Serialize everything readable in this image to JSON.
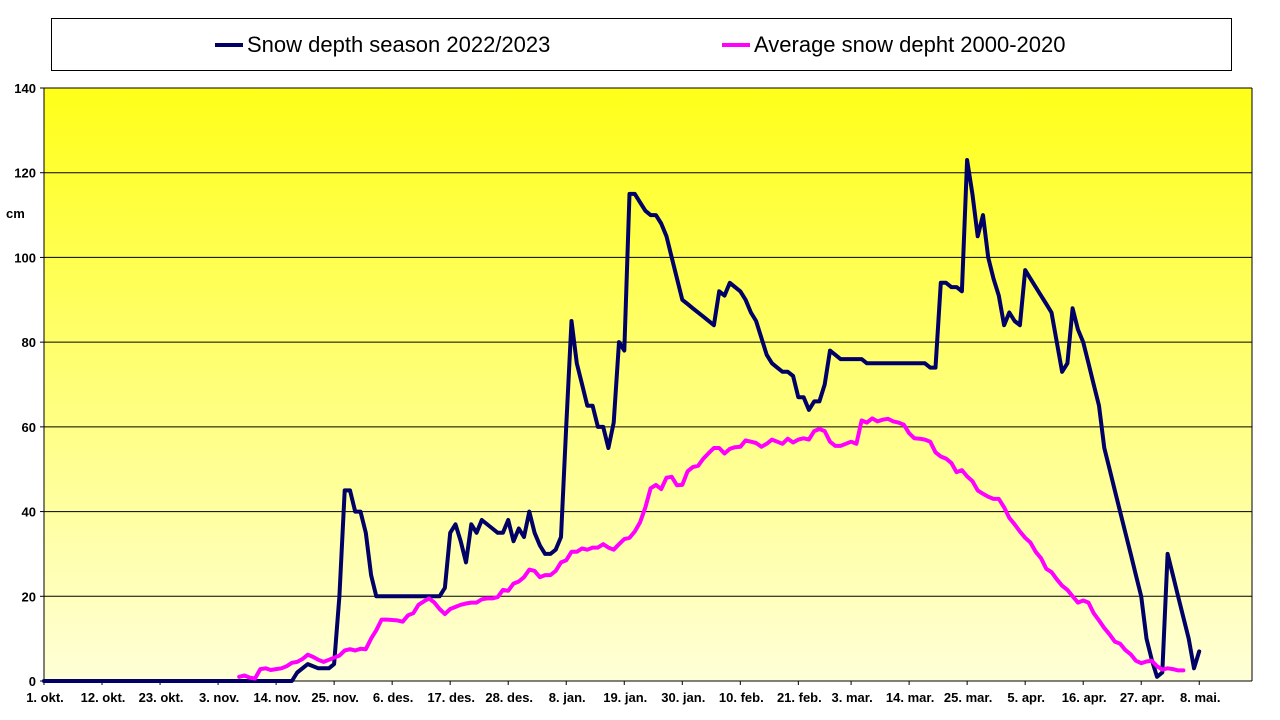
{
  "chart_data": {
    "type": "line",
    "title": "",
    "xlabel": "",
    "ylabel": "cm",
    "ylim": [
      0,
      140
    ],
    "yticks": [
      0,
      20,
      40,
      60,
      80,
      100,
      120,
      140
    ],
    "x_range_days": [
      0,
      229
    ],
    "xtick_labels": [
      "1. okt.",
      "12. okt.",
      "23. okt.",
      "3. nov.",
      "14. nov.",
      "25. nov.",
      "6. des.",
      "17. des.",
      "28. des.",
      "8. jan.",
      "19. jan.",
      "30. jan.",
      "10. feb.",
      "21. feb.",
      "3. mar.",
      "14. mar.",
      "25. mar.",
      "5. apr.",
      "16. apr.",
      "27. apr.",
      "8. mai."
    ],
    "xtick_positions": [
      0,
      11,
      22,
      33,
      44,
      55,
      66,
      77,
      88,
      99,
      110,
      121,
      132,
      143,
      153,
      164,
      175,
      186,
      197,
      208,
      219
    ],
    "grid": true,
    "legend_position": "top",
    "background_gradient": [
      "#ffff19",
      "#ffffd8"
    ],
    "series": [
      {
        "name": "Snow depth season 2022/2023",
        "color": "#000066",
        "points": [
          [
            0,
            0
          ],
          [
            47,
            0
          ],
          [
            48,
            2
          ],
          [
            50,
            4
          ],
          [
            52,
            3
          ],
          [
            54,
            3
          ],
          [
            55,
            4
          ],
          [
            56,
            20
          ],
          [
            57,
            45
          ],
          [
            58,
            45
          ],
          [
            59,
            40
          ],
          [
            60,
            40
          ],
          [
            61,
            35
          ],
          [
            62,
            25
          ],
          [
            63,
            20
          ],
          [
            75,
            20
          ],
          [
            76,
            22
          ],
          [
            77,
            35
          ],
          [
            78,
            37
          ],
          [
            79,
            33
          ],
          [
            80,
            28
          ],
          [
            81,
            37
          ],
          [
            82,
            35
          ],
          [
            83,
            38
          ],
          [
            85,
            36
          ],
          [
            86,
            35
          ],
          [
            87,
            35
          ],
          [
            88,
            38
          ],
          [
            89,
            33
          ],
          [
            90,
            36
          ],
          [
            91,
            34
          ],
          [
            92,
            40
          ],
          [
            93,
            35
          ],
          [
            94,
            32
          ],
          [
            95,
            30
          ],
          [
            96,
            30
          ],
          [
            97,
            31
          ],
          [
            98,
            34
          ],
          [
            99,
            60
          ],
          [
            100,
            85
          ],
          [
            101,
            75
          ],
          [
            102,
            70
          ],
          [
            103,
            65
          ],
          [
            104,
            65
          ],
          [
            105,
            60
          ],
          [
            106,
            60
          ],
          [
            107,
            55
          ],
          [
            108,
            61
          ],
          [
            109,
            80
          ],
          [
            110,
            78
          ],
          [
            111,
            115
          ],
          [
            112,
            115
          ],
          [
            113,
            113
          ],
          [
            114,
            111
          ],
          [
            115,
            110
          ],
          [
            116,
            110
          ],
          [
            117,
            108
          ],
          [
            118,
            105
          ],
          [
            119,
            100
          ],
          [
            120,
            95
          ],
          [
            121,
            90
          ],
          [
            122,
            89
          ],
          [
            123,
            88
          ],
          [
            125,
            86
          ],
          [
            127,
            84
          ],
          [
            128,
            92
          ],
          [
            129,
            91
          ],
          [
            130,
            94
          ],
          [
            131,
            93
          ],
          [
            132,
            92
          ],
          [
            133,
            90
          ],
          [
            134,
            87
          ],
          [
            135,
            85
          ],
          [
            136,
            81
          ],
          [
            137,
            77
          ],
          [
            138,
            75
          ],
          [
            139,
            74
          ],
          [
            140,
            73
          ],
          [
            141,
            73
          ],
          [
            142,
            72
          ],
          [
            143,
            67
          ],
          [
            144,
            67
          ],
          [
            145,
            64
          ],
          [
            146,
            66
          ],
          [
            147,
            66
          ],
          [
            148,
            70
          ],
          [
            149,
            78
          ],
          [
            150,
            77
          ],
          [
            151,
            76
          ],
          [
            155,
            76
          ],
          [
            156,
            75
          ],
          [
            167,
            75
          ],
          [
            168,
            74
          ],
          [
            169,
            74
          ],
          [
            170,
            94
          ],
          [
            171,
            94
          ],
          [
            172,
            93
          ],
          [
            173,
            93
          ],
          [
            174,
            92
          ],
          [
            175,
            123
          ],
          [
            176,
            115
          ],
          [
            177,
            105
          ],
          [
            178,
            110
          ],
          [
            179,
            100
          ],
          [
            180,
            95
          ],
          [
            181,
            91
          ],
          [
            182,
            84
          ],
          [
            183,
            87
          ],
          [
            184,
            85
          ],
          [
            185,
            84
          ],
          [
            186,
            97
          ],
          [
            187,
            95
          ],
          [
            188,
            93
          ],
          [
            189,
            91
          ],
          [
            190,
            89
          ],
          [
            191,
            87
          ],
          [
            192,
            80
          ],
          [
            193,
            73
          ],
          [
            194,
            75
          ],
          [
            195,
            88
          ],
          [
            196,
            83
          ],
          [
            197,
            80
          ],
          [
            198,
            75
          ],
          [
            199,
            70
          ],
          [
            200,
            65
          ],
          [
            201,
            55
          ],
          [
            202,
            50
          ],
          [
            203,
            45
          ],
          [
            204,
            40
          ],
          [
            205,
            35
          ],
          [
            206,
            30
          ],
          [
            207,
            25
          ],
          [
            208,
            20
          ],
          [
            209,
            10
          ],
          [
            210,
            5
          ],
          [
            211,
            1
          ],
          [
            212,
            2
          ],
          [
            213,
            30
          ],
          [
            214,
            25
          ],
          [
            215,
            20
          ],
          [
            216,
            15
          ],
          [
            217,
            10
          ],
          [
            218,
            3
          ],
          [
            219,
            7
          ]
        ]
      },
      {
        "name": "Average snow depht 2000-2020",
        "color": "#ff00ff",
        "points": [
          [
            37,
            1
          ],
          [
            38,
            1.3
          ],
          [
            39,
            0.8
          ],
          [
            40,
            0.6
          ],
          [
            41,
            2.8
          ],
          [
            42,
            3
          ],
          [
            43,
            2.6
          ],
          [
            44,
            2.8
          ],
          [
            45,
            3
          ],
          [
            46,
            3.5
          ],
          [
            47,
            4.3
          ],
          [
            48,
            4.5
          ],
          [
            49,
            5.2
          ],
          [
            50,
            6.2
          ],
          [
            51,
            5.7
          ],
          [
            52,
            5
          ],
          [
            53,
            4.5
          ],
          [
            54,
            5
          ],
          [
            55,
            5.5
          ],
          [
            56,
            6
          ],
          [
            57,
            7.2
          ],
          [
            58,
            7.5
          ],
          [
            59,
            7.2
          ],
          [
            60,
            7.6
          ],
          [
            61,
            7.5
          ],
          [
            62,
            10
          ],
          [
            63,
            12
          ],
          [
            64,
            14.5
          ],
          [
            65,
            14.5
          ],
          [
            67,
            14.3
          ],
          [
            68,
            14
          ],
          [
            69,
            15.5
          ],
          [
            70,
            16
          ],
          [
            71,
            18
          ],
          [
            72,
            18.8
          ],
          [
            73,
            19.5
          ],
          [
            74,
            18.5
          ],
          [
            75,
            17
          ],
          [
            76,
            15.8
          ],
          [
            77,
            17
          ],
          [
            78,
            17.5
          ],
          [
            79,
            18
          ],
          [
            80,
            18.3
          ],
          [
            81,
            18.5
          ],
          [
            82,
            18.5
          ],
          [
            83,
            19.3
          ],
          [
            84,
            19.5
          ],
          [
            85,
            19.5
          ],
          [
            86,
            19.8
          ],
          [
            87,
            21.5
          ],
          [
            88,
            21.3
          ],
          [
            89,
            23
          ],
          [
            90,
            23.5
          ],
          [
            91,
            24.5
          ],
          [
            92,
            26.3
          ],
          [
            93,
            26
          ],
          [
            94,
            24.5
          ],
          [
            95,
            25
          ],
          [
            96,
            25
          ],
          [
            97,
            26
          ],
          [
            98,
            28
          ],
          [
            99,
            28.5
          ],
          [
            100,
            30.5
          ],
          [
            101,
            30.5
          ],
          [
            102,
            31.3
          ],
          [
            103,
            31
          ],
          [
            104,
            31.5
          ],
          [
            105,
            31.5
          ],
          [
            106,
            32.3
          ],
          [
            107,
            31.5
          ],
          [
            108,
            31
          ],
          [
            109,
            32.3
          ],
          [
            110,
            33.5
          ],
          [
            111,
            33.8
          ],
          [
            112,
            35.3
          ],
          [
            113,
            37.5
          ],
          [
            114,
            41
          ],
          [
            115,
            45.5
          ],
          [
            116,
            46.3
          ],
          [
            117,
            45.3
          ],
          [
            118,
            48
          ],
          [
            119,
            48.2
          ],
          [
            120,
            46.2
          ],
          [
            121,
            46.3
          ],
          [
            122,
            49.5
          ],
          [
            123,
            50.5
          ],
          [
            124,
            50.8
          ],
          [
            125,
            52.5
          ],
          [
            126,
            53.8
          ],
          [
            127,
            55
          ],
          [
            128,
            55
          ],
          [
            129,
            53.7
          ],
          [
            130,
            54.8
          ],
          [
            131,
            55.2
          ],
          [
            132,
            55.3
          ],
          [
            133,
            56.8
          ],
          [
            134,
            56.5
          ],
          [
            135,
            56.2
          ],
          [
            136,
            55.3
          ],
          [
            137,
            56
          ],
          [
            138,
            57
          ],
          [
            139,
            56.5
          ],
          [
            140,
            56
          ],
          [
            141,
            57.2
          ],
          [
            142,
            56.3
          ],
          [
            143,
            57
          ],
          [
            144,
            57.3
          ],
          [
            145,
            57
          ],
          [
            146,
            59
          ],
          [
            147,
            59.5
          ],
          [
            148,
            59
          ],
          [
            149,
            56.5
          ],
          [
            150,
            55.5
          ],
          [
            151,
            55.5
          ],
          [
            152,
            56
          ],
          [
            153,
            56.5
          ],
          [
            154,
            56
          ],
          [
            155,
            61.5
          ],
          [
            156,
            61
          ],
          [
            157,
            62
          ],
          [
            158,
            61.3
          ],
          [
            159,
            61.7
          ],
          [
            160,
            61.9
          ],
          [
            161,
            61.3
          ],
          [
            162,
            61
          ],
          [
            163,
            60.5
          ],
          [
            164,
            58.5
          ],
          [
            165,
            57.3
          ],
          [
            166,
            57.2
          ],
          [
            167,
            57
          ],
          [
            168,
            56.5
          ],
          [
            169,
            54
          ],
          [
            170,
            53
          ],
          [
            171,
            52.5
          ],
          [
            172,
            51.5
          ],
          [
            173,
            49.3
          ],
          [
            174,
            49.8
          ],
          [
            175,
            48.3
          ],
          [
            176,
            47.2
          ],
          [
            177,
            45
          ],
          [
            178,
            44.2
          ],
          [
            179,
            43.5
          ],
          [
            180,
            43
          ],
          [
            181,
            43
          ],
          [
            182,
            41
          ],
          [
            183,
            38.5
          ],
          [
            184,
            37
          ],
          [
            185,
            35.3
          ],
          [
            186,
            33.8
          ],
          [
            187,
            32.7
          ],
          [
            188,
            30.5
          ],
          [
            189,
            29
          ],
          [
            190,
            26.5
          ],
          [
            191,
            25.7
          ],
          [
            192,
            24
          ],
          [
            193,
            22.5
          ],
          [
            194,
            21.5
          ],
          [
            195,
            20
          ],
          [
            196,
            18.5
          ],
          [
            197,
            19
          ],
          [
            198,
            18.5
          ],
          [
            199,
            16
          ],
          [
            200,
            14.3
          ],
          [
            201,
            12.5
          ],
          [
            202,
            11
          ],
          [
            203,
            9.3
          ],
          [
            204,
            8.8
          ],
          [
            205,
            7.3
          ],
          [
            206,
            6.3
          ],
          [
            207,
            4.8
          ],
          [
            208,
            4.2
          ],
          [
            209,
            4.6
          ],
          [
            210,
            4.8
          ],
          [
            211,
            3.5
          ],
          [
            212,
            2.7
          ],
          [
            213,
            3
          ],
          [
            214,
            2.8
          ],
          [
            215,
            2.5
          ],
          [
            216,
            2.5
          ]
        ]
      }
    ]
  }
}
